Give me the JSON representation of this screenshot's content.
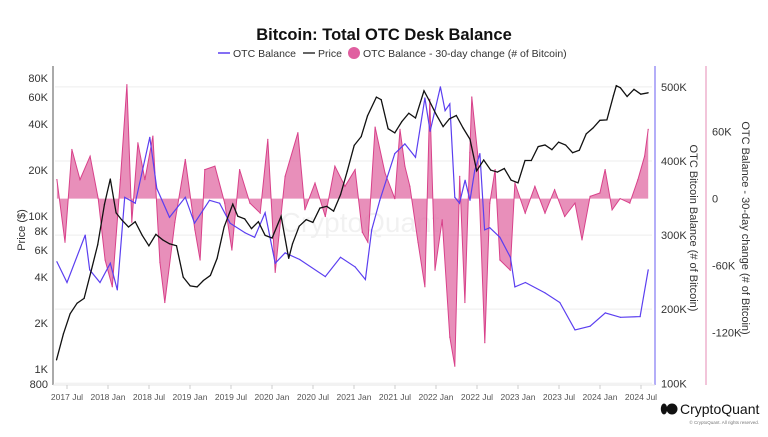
{
  "chart_data": {
    "type": "line",
    "title": "Bitcoin: Total OTC Desk Balance",
    "legend": {
      "placement": "top",
      "entries": [
        "OTC Balance",
        "Price",
        "OTC Balance - 30-day change (# of Bitcoin)"
      ]
    },
    "colors": {
      "otc_balance": "#5b3ff0",
      "price": "#111111",
      "change_fill": "#e06aa3",
      "change_line": "#d8418a",
      "left_axis": "#555555",
      "otc_axis": "#6a5cf0",
      "change_axis": "#e58bb6",
      "grid": "#eeeeee"
    },
    "x_ticks": [
      "2017 Jul",
      "2018 Jan",
      "2018 Jul",
      "2019 Jan",
      "2019 Jul",
      "2020 Jan",
      "2020 Jul",
      "2021 Jan",
      "2021 Jul",
      "2022 Jan",
      "2022 Jul",
      "2023 Jan",
      "2023 Jul",
      "2024 Jan",
      "2024 Jul"
    ],
    "axes": {
      "price": {
        "label": "Price ($)",
        "scale": "log",
        "ylim": [
          800,
          80000
        ],
        "ticks": [
          800,
          1000,
          2000,
          4000,
          6000,
          8000,
          10000,
          20000,
          40000,
          60000,
          80000
        ],
        "tick_labels": [
          "800",
          "1K",
          "2K",
          "4K",
          "6K",
          "8K",
          "10K",
          "20K",
          "40K",
          "60K",
          "80K"
        ]
      },
      "otc": {
        "label": "OTC Bitcoin Balance (# of Bitcoin)",
        "scale": "linear",
        "ylim": [
          99000,
          512000
        ],
        "ticks": [
          100000,
          200000,
          300000,
          400000,
          500000
        ],
        "tick_labels": [
          "100K",
          "200K",
          "300K",
          "400K",
          "500K"
        ]
      },
      "change": {
        "label": "OTC Balance - 30-day change (# of Bitcoin)",
        "scale": "linear",
        "ylim": [
          -166000,
          108000
        ],
        "ticks": [
          -120000,
          -60000,
          0,
          60000
        ],
        "tick_labels": [
          "-120K",
          "-60K",
          "0",
          "60K"
        ]
      }
    },
    "grid": true,
    "series": [
      {
        "name": "Price",
        "axis": "price",
        "points": [
          [
            "2017-05-15",
            1150
          ],
          [
            "2017-06-15",
            1700
          ],
          [
            "2017-07-15",
            2300
          ],
          [
            "2017-08-15",
            2700
          ],
          [
            "2017-09-15",
            2900
          ],
          [
            "2017-10-15",
            4300
          ],
          [
            "2017-11-15",
            6500
          ],
          [
            "2017-12-15",
            12000
          ],
          [
            "2018-01-10",
            17500
          ],
          [
            "2018-02-05",
            10500
          ],
          [
            "2018-03-01",
            9500
          ],
          [
            "2018-04-01",
            8500
          ],
          [
            "2018-05-01",
            9200
          ],
          [
            "2018-06-01",
            7500
          ],
          [
            "2018-07-01",
            6400
          ],
          [
            "2018-08-01",
            7600
          ],
          [
            "2018-09-01",
            7000
          ],
          [
            "2018-10-01",
            6600
          ],
          [
            "2018-11-01",
            6400
          ],
          [
            "2018-12-01",
            4000
          ],
          [
            "2019-01-01",
            3500
          ],
          [
            "2019-02-01",
            3450
          ],
          [
            "2019-03-01",
            3800
          ],
          [
            "2019-04-01",
            4100
          ],
          [
            "2019-05-01",
            5300
          ],
          [
            "2019-06-01",
            8500
          ],
          [
            "2019-07-10",
            12000
          ],
          [
            "2019-08-01",
            10000
          ],
          [
            "2019-09-01",
            9600
          ],
          [
            "2019-10-01",
            8300
          ],
          [
            "2019-11-01",
            9200
          ],
          [
            "2019-12-01",
            7500
          ],
          [
            "2020-01-01",
            7200
          ],
          [
            "2020-02-10",
            10000
          ],
          [
            "2020-03-15",
            5300
          ],
          [
            "2020-04-01",
            6600
          ],
          [
            "2020-05-01",
            8600
          ],
          [
            "2020-06-01",
            9500
          ],
          [
            "2020-07-01",
            9100
          ],
          [
            "2020-08-01",
            11300
          ],
          [
            "2020-09-01",
            11600
          ],
          [
            "2020-10-01",
            10800
          ],
          [
            "2020-11-01",
            13800
          ],
          [
            "2020-12-01",
            19700
          ],
          [
            "2021-01-01",
            29000
          ],
          [
            "2021-02-01",
            33100
          ],
          [
            "2021-03-01",
            45200
          ],
          [
            "2021-04-10",
            60000
          ],
          [
            "2021-05-01",
            57700
          ],
          [
            "2021-06-01",
            37300
          ],
          [
            "2021-07-01",
            35000
          ],
          [
            "2021-08-01",
            41500
          ],
          [
            "2021-09-01",
            47100
          ],
          [
            "2021-10-01",
            43800
          ],
          [
            "2021-11-08",
            66000
          ],
          [
            "2021-12-01",
            57000
          ],
          [
            "2022-01-01",
            46300
          ],
          [
            "2022-02-01",
            38500
          ],
          [
            "2022-03-01",
            43200
          ],
          [
            "2022-04-01",
            45500
          ],
          [
            "2022-05-01",
            37700
          ],
          [
            "2022-06-01",
            31800
          ],
          [
            "2022-07-01",
            19800
          ],
          [
            "2022-08-01",
            23300
          ],
          [
            "2022-09-01",
            20000
          ],
          [
            "2022-10-01",
            19400
          ],
          [
            "2022-11-01",
            20500
          ],
          [
            "2022-12-01",
            17200
          ],
          [
            "2023-01-01",
            16500
          ],
          [
            "2023-02-01",
            23100
          ],
          [
            "2023-03-01",
            23100
          ],
          [
            "2023-04-01",
            28500
          ],
          [
            "2023-05-01",
            29200
          ],
          [
            "2023-06-01",
            27200
          ],
          [
            "2023-07-01",
            30500
          ],
          [
            "2023-08-01",
            29200
          ],
          [
            "2023-09-01",
            26000
          ],
          [
            "2023-10-01",
            27000
          ],
          [
            "2023-11-01",
            34500
          ],
          [
            "2023-12-01",
            37700
          ],
          [
            "2024-01-01",
            42300
          ],
          [
            "2024-02-01",
            42600
          ],
          [
            "2024-03-01",
            61200
          ],
          [
            "2024-03-14",
            71300
          ],
          [
            "2024-04-01",
            69000
          ],
          [
            "2024-05-01",
            60600
          ],
          [
            "2024-06-01",
            67500
          ],
          [
            "2024-07-01",
            62700
          ],
          [
            "2024-08-03",
            64000
          ]
        ]
      },
      {
        "name": "OTC Balance",
        "axis": "otc",
        "points": [
          [
            "2017-05-17",
            264000
          ],
          [
            "2017-07-01",
            236000
          ],
          [
            "2017-09-20",
            300000
          ],
          [
            "2017-10-10",
            253000
          ],
          [
            "2017-11-25",
            236000
          ],
          [
            "2018-01-10",
            262000
          ],
          [
            "2018-02-10",
            226000
          ],
          [
            "2018-03-15",
            351000
          ],
          [
            "2018-05-01",
            343000
          ],
          [
            "2018-07-05",
            432000
          ],
          [
            "2018-08-05",
            363000
          ],
          [
            "2018-10-01",
            324000
          ],
          [
            "2018-12-10",
            351000
          ],
          [
            "2019-01-20",
            316000
          ],
          [
            "2019-03-28",
            347000
          ],
          [
            "2019-05-12",
            343000
          ],
          [
            "2019-06-28",
            316000
          ],
          [
            "2019-09-03",
            303000
          ],
          [
            "2019-10-15",
            297000
          ],
          [
            "2019-12-01",
            330000
          ],
          [
            "2020-01-15",
            262000
          ],
          [
            "2020-02-28",
            276000
          ],
          [
            "2020-05-03",
            267000
          ],
          [
            "2020-08-25",
            244000
          ],
          [
            "2020-11-01",
            270000
          ],
          [
            "2021-01-05",
            257000
          ],
          [
            "2021-02-20",
            240000
          ],
          [
            "2021-03-20",
            307000
          ],
          [
            "2021-04-25",
            347000
          ],
          [
            "2021-07-01",
            410000
          ],
          [
            "2021-08-15",
            423000
          ],
          [
            "2021-10-01",
            405000
          ],
          [
            "2021-11-12",
            485000
          ],
          [
            "2021-12-05",
            440000
          ],
          [
            "2022-01-20",
            500000
          ],
          [
            "2022-02-10",
            468000
          ],
          [
            "2022-03-03",
            477000
          ],
          [
            "2022-03-25",
            351000
          ],
          [
            "2022-04-15",
            343000
          ],
          [
            "2022-05-10",
            374000
          ],
          [
            "2022-06-01",
            347000
          ],
          [
            "2022-06-22",
            387000
          ],
          [
            "2022-07-15",
            410000
          ],
          [
            "2022-08-05",
            307000
          ],
          [
            "2022-08-28",
            310000
          ],
          [
            "2022-10-12",
            297000
          ],
          [
            "2022-11-28",
            270000
          ],
          [
            "2022-12-18",
            230000
          ],
          [
            "2023-02-03",
            236000
          ],
          [
            "2023-05-01",
            222000
          ],
          [
            "2023-07-06",
            209000
          ],
          [
            "2023-09-12",
            172000
          ],
          [
            "2023-11-18",
            177000
          ],
          [
            "2024-01-25",
            195000
          ],
          [
            "2024-04-01",
            189000
          ],
          [
            "2024-06-28",
            190000
          ],
          [
            "2024-08-03",
            253000
          ]
        ]
      },
      {
        "name": "OTC Balance - 30-day change (# of Bitcoin)",
        "axis": "change",
        "points": [
          [
            "2017-05-17",
            17000
          ],
          [
            "2017-06-22",
            -39000
          ],
          [
            "2017-07-23",
            44000
          ],
          [
            "2017-08-28",
            17000
          ],
          [
            "2017-10-12",
            38000
          ],
          [
            "2017-11-17",
            0
          ],
          [
            "2017-12-18",
            -55000
          ],
          [
            "2018-01-19",
            -79000
          ],
          [
            "2018-02-24",
            17000
          ],
          [
            "2018-03-25",
            102000
          ],
          [
            "2018-04-16",
            -21000
          ],
          [
            "2018-05-13",
            50000
          ],
          [
            "2018-06-13",
            17000
          ],
          [
            "2018-07-19",
            56000
          ],
          [
            "2018-08-19",
            -57000
          ],
          [
            "2018-09-10",
            -93000
          ],
          [
            "2018-10-25",
            -21000
          ],
          [
            "2018-12-10",
            35000
          ],
          [
            "2019-01-22",
            -28000
          ],
          [
            "2019-02-14",
            -55000
          ],
          [
            "2019-03-07",
            26000
          ],
          [
            "2019-04-21",
            29000
          ],
          [
            "2019-06-04",
            -4000
          ],
          [
            "2019-07-06",
            -46000
          ],
          [
            "2019-08-09",
            26000
          ],
          [
            "2019-09-24",
            -4000
          ],
          [
            "2019-11-09",
            -13000
          ],
          [
            "2019-12-13",
            53000
          ],
          [
            "2020-01-15",
            -66000
          ],
          [
            "2020-02-28",
            20000
          ],
          [
            "2020-04-25",
            59000
          ],
          [
            "2020-05-26",
            -10000
          ],
          [
            "2020-07-10",
            14000
          ],
          [
            "2020-08-25",
            -16000
          ],
          [
            "2020-10-07",
            29000
          ],
          [
            "2020-11-21",
            11000
          ],
          [
            "2021-01-05",
            26000
          ],
          [
            "2021-02-06",
            -30000
          ],
          [
            "2021-03-03",
            -39000
          ],
          [
            "2021-04-04",
            64000
          ],
          [
            "2021-05-18",
            23000
          ],
          [
            "2021-07-01",
            0
          ],
          [
            "2021-07-24",
            62000
          ],
          [
            "2021-08-15",
            29000
          ],
          [
            "2021-09-06",
            11000
          ],
          [
            "2021-10-12",
            -39000
          ],
          [
            "2021-11-12",
            -79000
          ],
          [
            "2021-12-04",
            89000
          ],
          [
            "2021-12-27",
            -64000
          ],
          [
            "2022-01-28",
            -19000
          ],
          [
            "2022-03-03",
            -124000
          ],
          [
            "2022-03-25",
            -150000
          ],
          [
            "2022-04-16",
            20000
          ],
          [
            "2022-05-09",
            -93000
          ],
          [
            "2022-05-31",
            41000
          ],
          [
            "2022-06-09",
            91000
          ],
          [
            "2022-07-06",
            38000
          ],
          [
            "2022-08-06",
            -129000
          ],
          [
            "2022-08-28",
            -4000
          ],
          [
            "2022-09-21",
            26000
          ],
          [
            "2022-10-12",
            -55000
          ],
          [
            "2022-11-27",
            -64000
          ],
          [
            "2022-12-18",
            14000
          ],
          [
            "2023-02-02",
            -13000
          ],
          [
            "2023-03-17",
            11000
          ],
          [
            "2023-05-01",
            -13000
          ],
          [
            "2023-06-13",
            8000
          ],
          [
            "2023-07-28",
            -16000
          ],
          [
            "2023-09-12",
            -4000
          ],
          [
            "2023-10-13",
            -37000
          ],
          [
            "2023-11-18",
            2000
          ],
          [
            "2024-01-01",
            5000
          ],
          [
            "2024-01-24",
            26000
          ],
          [
            "2024-02-24",
            -10000
          ],
          [
            "2024-03-31",
            0
          ],
          [
            "2024-05-13",
            -4000
          ],
          [
            "2024-06-18",
            17000
          ],
          [
            "2024-07-18",
            38000
          ],
          [
            "2024-08-03",
            62000
          ]
        ]
      }
    ]
  },
  "watermark": "CryptoQuant",
  "brand": {
    "name": "CryptoQuant",
    "copyright": "© CryptoQuant. All rights reserved."
  }
}
